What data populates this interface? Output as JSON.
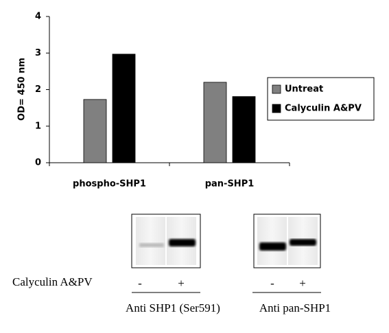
{
  "chart_data": {
    "type": "bar",
    "y_label": "OD= 450 nm",
    "categories": [
      "phospho-SHP1",
      "pan-SHP1"
    ],
    "series": [
      {
        "name": "Untreat",
        "color": "#808080",
        "values": [
          1.73,
          2.2
        ]
      },
      {
        "name": "Calyculin A&PV",
        "color": "#000000",
        "values": [
          2.97,
          1.81
        ]
      }
    ],
    "ylim": [
      0,
      4
    ],
    "yticks": [
      0,
      1,
      2,
      3,
      4
    ],
    "grid": false,
    "legend": "right"
  },
  "blots": {
    "treatment_label": "Calyculin A&PV",
    "panels": [
      {
        "label": "Anti SHP1 (Ser591)",
        "lanes": [
          "-",
          "+"
        ]
      },
      {
        "label": "Anti pan-SHP1",
        "lanes": [
          "-",
          "+"
        ]
      }
    ]
  }
}
